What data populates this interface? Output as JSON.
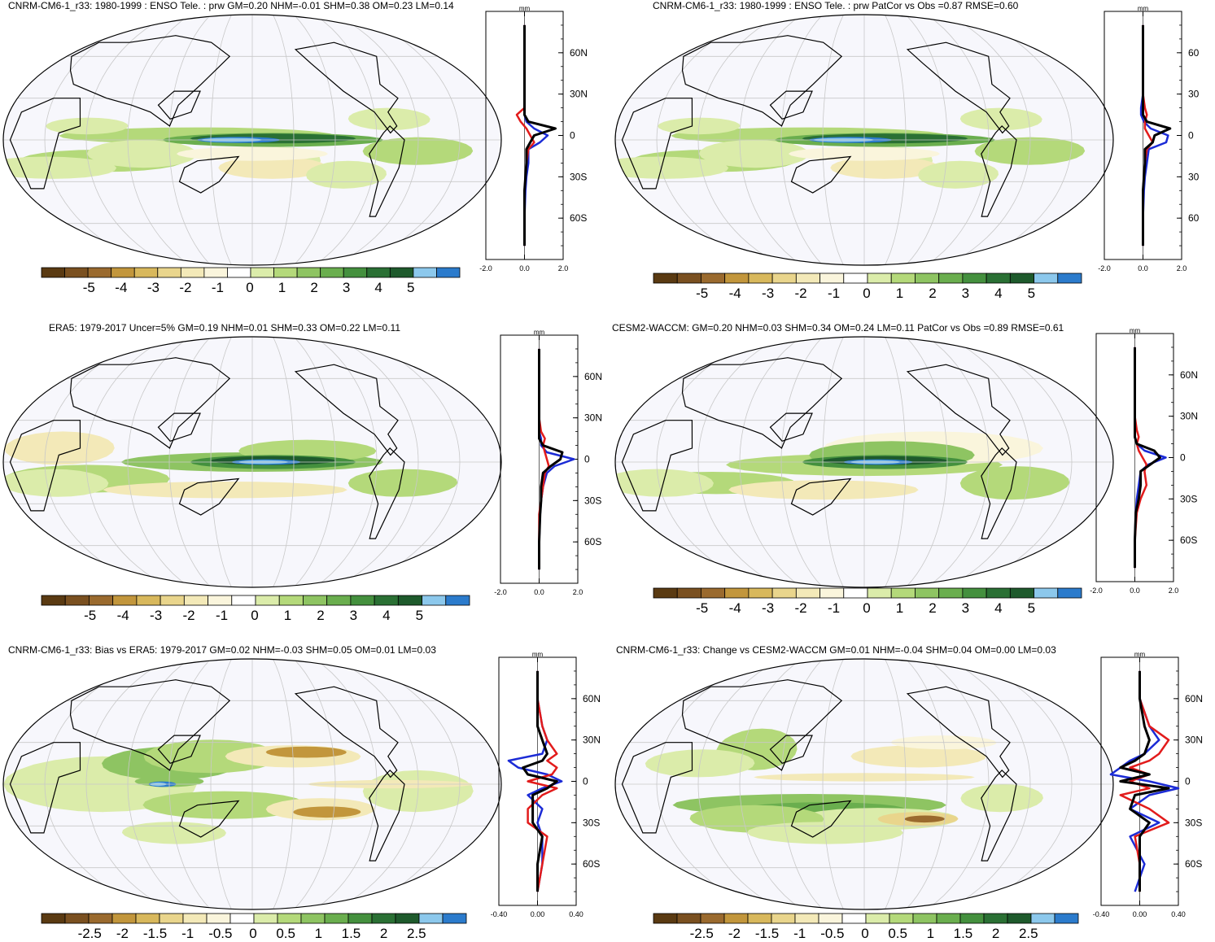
{
  "colors": {
    "scale": [
      "#5a3a12",
      "#7a5020",
      "#9a6a2e",
      "#c2963c",
      "#d8b85c",
      "#e9d58c",
      "#f3e9b8",
      "#faf5dc",
      "#ffffff",
      "#dbecaa",
      "#b4d97a",
      "#8ec462",
      "#6aae4e",
      "#44903e",
      "#2a7034",
      "#1e5a2c",
      "#8cc8ec",
      "#2b7bcc"
    ],
    "map_bg": "#f7f7fc",
    "grid": "#c8c8c8",
    "coast": "#000000",
    "line_blue": "#1b2bd6",
    "line_red": "#e21b1b",
    "line_black": "#000000"
  },
  "panels": [
    {
      "id": "p1",
      "title": "CNRM-CM6-1_r33: 1980-1999 : ENSO Tele. : prw GM=0.20 NHM=-0.01 SHM=0.38 OM=0.23 LM=0.14",
      "unit": "mm",
      "cbar_labels": [
        "-5",
        "-4",
        "-3",
        "-2",
        "-1",
        "0",
        "1",
        "2",
        "3",
        "4",
        "5"
      ],
      "x_ticks": [
        "-2.0",
        "0.0",
        "2.0"
      ],
      "lat_ticks": [
        "60N",
        "30N",
        "0",
        "30S",
        "60S"
      ],
      "pattern": "model"
    },
    {
      "id": "p2",
      "title": "CNRM-CM6-1_r33: 1980-1999 : ENSO Tele. : prw PatCor vs Obs =0.87 RMSE=0.60",
      "unit": "mm",
      "cbar_labels": [
        "-5",
        "-4",
        "-3",
        "-2",
        "-1",
        "0",
        "1",
        "2",
        "3",
        "4",
        "5"
      ],
      "x_ticks": [
        "-2.0",
        "0.0",
        "2.0"
      ],
      "lat_ticks": [
        "60",
        "30",
        "0",
        "30",
        "60"
      ],
      "pattern": "model"
    },
    {
      "id": "p3",
      "title": "ERA5: 1979-2017 Uncer=5% GM=0.19 NHM=0.01 SHM=0.33 OM=0.22 LM=0.11",
      "unit": "mm",
      "cbar_labels": [
        "-5",
        "-4",
        "-3",
        "-2",
        "-1",
        "0",
        "1",
        "2",
        "3",
        "4",
        "5"
      ],
      "x_ticks": [
        "-2.0",
        "0.0",
        "2.0"
      ],
      "lat_ticks": [
        "60N",
        "30N",
        "0",
        "30S",
        "60S"
      ],
      "pattern": "obs"
    },
    {
      "id": "p4",
      "title": "CESM2-WACCM: GM=0.20 NHM=0.03 SHM=0.34 OM=0.24 LM=0.11 PatCor vs Obs =0.89 RMSE=0.61",
      "unit": "mm",
      "cbar_labels": [
        "-5",
        "-4",
        "-3",
        "-2",
        "-1",
        "0",
        "1",
        "2",
        "3",
        "4",
        "5"
      ],
      "x_ticks": [
        "-2.0",
        "0.0",
        "2.0"
      ],
      "lat_ticks": [
        "60N",
        "30N",
        "0",
        "30S",
        "60S"
      ],
      "pattern": "cesm"
    },
    {
      "id": "p5",
      "title": "CNRM-CM6-1_r33: Bias vs ERA5: 1979-2017 GM=0.02 NHM=-0.03 SHM=0.05 OM=0.01 LM=0.03",
      "unit": "mm",
      "cbar_labels": [
        "-2.5",
        "-2",
        "-1.5",
        "-1",
        "-0.5",
        "0",
        "0.5",
        "1",
        "1.5",
        "2",
        "2.5"
      ],
      "x_ticks": [
        "-0.40",
        "0.00",
        "0.40"
      ],
      "lat_ticks": [
        "60N",
        "30N",
        "0",
        "30S",
        "60S"
      ],
      "pattern": "bias"
    },
    {
      "id": "p6",
      "title": "CNRM-CM6-1_r33: Change vs CESM2-WACCM GM=0.01 NHM=-0.04 SHM=0.04 OM=0.00 LM=0.03",
      "unit": "mm",
      "cbar_labels": [
        "-2.5",
        "-2",
        "-1.5",
        "-1",
        "-0.5",
        "0",
        "0.5",
        "1",
        "1.5",
        "2",
        "2.5"
      ],
      "x_ticks": [
        "-0.40",
        "0.00",
        "0.40"
      ],
      "lat_ticks": [
        "60N",
        "30N",
        "0",
        "30S",
        "60S"
      ],
      "pattern": "change"
    }
  ],
  "chart_data": [
    {
      "type": "heatmap",
      "title": "CNRM-CM6-1_r33: 1980-1999 : ENSO Tele. : prw GM=0.20 NHM=-0.01 SHM=0.38 OM=0.23 LM=0.14",
      "xlim": [
        -2.0,
        2.0
      ],
      "ylim": [
        -90,
        90
      ],
      "series": [
        {
          "lat": [
            -80,
            -60,
            -40,
            -30,
            -20,
            -10,
            -5,
            0,
            5,
            10,
            15,
            20,
            30,
            40,
            60,
            80
          ],
          "values": [
            0,
            0,
            0.05,
            0.1,
            0.2,
            0.2,
            0.8,
            1.2,
            0.5,
            0.1,
            0,
            0,
            0,
            0,
            0,
            0
          ]
        },
        {
          "lat": [
            -80,
            -60,
            -40,
            -30,
            -20,
            -10,
            -5,
            0,
            5,
            10,
            15,
            20,
            30,
            40,
            60,
            80
          ],
          "values": [
            0,
            0,
            0,
            0.05,
            0.1,
            0.2,
            0.5,
            0.3,
            0.1,
            -0.2,
            -0.4,
            0,
            0,
            0,
            0,
            0
          ]
        },
        {
          "lat": [
            -80,
            -60,
            -40,
            -30,
            -20,
            -10,
            -5,
            0,
            5,
            10,
            15,
            20,
            30,
            40,
            60,
            80
          ],
          "values": [
            0,
            0,
            0,
            0.05,
            0.1,
            0.1,
            0.3,
            0.5,
            1.6,
            0.2,
            0,
            0,
            0,
            0,
            0,
            0
          ]
        }
      ]
    },
    {
      "type": "heatmap",
      "title": "CNRM-CM6-1_r33: 1980-1999 : ENSO Tele. : prw PatCor vs Obs =0.87 RMSE=0.60",
      "xlim": [
        -2.0,
        2.0
      ],
      "ylim": [
        -90,
        90
      ],
      "series": [
        {
          "lat": [
            -80,
            -60,
            -40,
            -30,
            -20,
            -10,
            -5,
            0,
            5,
            10,
            15,
            20,
            30,
            40,
            60,
            80
          ],
          "values": [
            0,
            0,
            0.05,
            0.1,
            0.2,
            0.3,
            1.2,
            1.3,
            0.4,
            0.05,
            -0.1,
            -0.1,
            0,
            0,
            0,
            0
          ]
        },
        {
          "lat": [
            -80,
            -60,
            -40,
            -30,
            -20,
            -10,
            -5,
            0,
            5,
            10,
            15,
            20,
            30,
            40,
            60,
            80
          ],
          "values": [
            0,
            0,
            0,
            0.05,
            0.1,
            0.2,
            0.5,
            0.3,
            0.1,
            0.1,
            0.2,
            0.1,
            0,
            0,
            0,
            0
          ]
        },
        {
          "lat": [
            -80,
            -60,
            -40,
            -30,
            -20,
            -10,
            -5,
            0,
            5,
            10,
            15,
            20,
            30,
            40,
            60,
            80
          ],
          "values": [
            0,
            0,
            0,
            0.05,
            0.1,
            0.1,
            0.5,
            0.6,
            1.4,
            0.2,
            0,
            0,
            0,
            0,
            0,
            0
          ]
        }
      ]
    },
    {
      "type": "heatmap",
      "title": "ERA5: 1979-2017 Uncer=5% GM=0.19 NHM=0.01 SHM=0.33 OM=0.22 LM=0.11",
      "xlim": [
        -2.0,
        2.0
      ],
      "ylim": [
        -90,
        90
      ],
      "series": [
        {
          "lat": [
            -80,
            -60,
            -40,
            -30,
            -20,
            -10,
            -5,
            0,
            5,
            10,
            15,
            20,
            30,
            40,
            60,
            80
          ],
          "values": [
            0,
            0,
            0.05,
            0.1,
            0.2,
            0.4,
            0.8,
            1.8,
            0.4,
            0.1,
            0.1,
            0,
            0,
            0,
            0,
            0
          ]
        },
        {
          "lat": [
            -80,
            -60,
            -40,
            -30,
            -20,
            -10,
            -5,
            0,
            5,
            10,
            15,
            20,
            30,
            40,
            60,
            80
          ],
          "values": [
            0,
            0,
            0,
            0.1,
            0.2,
            0.3,
            0.5,
            0.4,
            0.3,
            0.2,
            0.3,
            0.1,
            0,
            0,
            0,
            0
          ]
        },
        {
          "lat": [
            -80,
            -60,
            -40,
            -30,
            -20,
            -10,
            -5,
            0,
            5,
            10,
            15,
            20,
            30,
            40,
            60,
            80
          ],
          "values": [
            0,
            0,
            0.05,
            0.1,
            0.1,
            0.2,
            0.6,
            1.1,
            1.2,
            0.2,
            0,
            0,
            0,
            0,
            0,
            0
          ]
        }
      ]
    },
    {
      "type": "heatmap",
      "title": "CESM2-WACCM: GM=0.20 NHM=0.03 SHM=0.34 OM=0.24 LM=0.11 PatCor vs Obs =0.89 RMSE=0.61",
      "xlim": [
        -2.0,
        2.0
      ],
      "ylim": [
        -90,
        90
      ],
      "series": [
        {
          "lat": [
            -80,
            -60,
            -40,
            -30,
            -20,
            -10,
            -5,
            0,
            5,
            10,
            15,
            20,
            30,
            40,
            60,
            80
          ],
          "values": [
            0,
            0,
            0.05,
            0.1,
            0.2,
            0.3,
            0.7,
            1.6,
            0.5,
            0.1,
            0,
            0,
            0,
            0,
            0,
            0
          ]
        },
        {
          "lat": [
            -80,
            -60,
            -40,
            -30,
            -20,
            -10,
            -5,
            0,
            5,
            10,
            15,
            20,
            30,
            40,
            60,
            80
          ],
          "values": [
            0,
            0,
            0.1,
            0.3,
            0.6,
            0.5,
            0.6,
            0.4,
            0.2,
            0.1,
            0.2,
            0.1,
            0,
            0,
            0,
            0
          ]
        },
        {
          "lat": [
            -80,
            -60,
            -40,
            -30,
            -20,
            -10,
            -5,
            0,
            5,
            10,
            15,
            20,
            30,
            40,
            60,
            80
          ],
          "values": [
            0,
            0,
            0.05,
            0.2,
            0.3,
            0.3,
            0.8,
            1.3,
            1.0,
            0.1,
            0,
            0,
            0,
            0,
            0,
            0
          ]
        }
      ]
    },
    {
      "type": "heatmap",
      "title": "CNRM-CM6-1_r33: Bias vs ERA5: 1979-2017 GM=0.02 NHM=-0.03 SHM=0.05 OM=0.01 LM=0.03",
      "xlim": [
        -0.4,
        0.4
      ],
      "ylim": [
        -90,
        90
      ],
      "series": [
        {
          "lat": [
            -80,
            -60,
            -40,
            -30,
            -20,
            -10,
            -5,
            0,
            5,
            10,
            15,
            20,
            30,
            40,
            60,
            80
          ],
          "values": [
            0,
            0.05,
            0.05,
            0,
            0.05,
            -0.1,
            0.05,
            0.25,
            0.1,
            -0.2,
            -0.3,
            0.05,
            0.1,
            0.05,
            0,
            0
          ]
        },
        {
          "lat": [
            -80,
            -60,
            -40,
            -30,
            -20,
            -10,
            -5,
            0,
            5,
            10,
            15,
            20,
            30,
            40,
            60,
            80
          ],
          "values": [
            0,
            0.05,
            0.1,
            -0.1,
            -0.1,
            0.05,
            0.2,
            -0.1,
            0.15,
            0.2,
            0.1,
            0.2,
            0.1,
            0.05,
            0,
            0
          ]
        },
        {
          "lat": [
            -80,
            -60,
            -40,
            -30,
            -20,
            -10,
            -5,
            0,
            5,
            10,
            15,
            20,
            30,
            40,
            60,
            80
          ],
          "values": [
            0,
            0,
            0.05,
            -0.05,
            -0.05,
            -0.05,
            0.1,
            0.2,
            -0.1,
            -0.15,
            0.05,
            0.1,
            0.05,
            0,
            0,
            0
          ]
        }
      ]
    },
    {
      "type": "heatmap",
      "title": "CNRM-CM6-1_r33: Change vs CESM2-WACCM GM=0.01 NHM=-0.04 SHM=0.04 OM=0.00 LM=0.03",
      "xlim": [
        -0.4,
        0.4
      ],
      "ylim": [
        -90,
        90
      ],
      "series": [
        {
          "lat": [
            -80,
            -60,
            -40,
            -30,
            -20,
            -10,
            -5,
            0,
            5,
            10,
            15,
            20,
            30,
            40,
            60,
            80
          ],
          "values": [
            -0.05,
            0.05,
            -0.1,
            0.2,
            -0.1,
            0.1,
            0.4,
            0.1,
            -0.3,
            -0.2,
            -0.1,
            0.05,
            0.2,
            0.1,
            0,
            0
          ]
        },
        {
          "lat": [
            -80,
            -60,
            -40,
            -30,
            -20,
            -10,
            -5,
            0,
            5,
            10,
            15,
            20,
            30,
            40,
            60,
            80
          ],
          "values": [
            0,
            0,
            -0.05,
            0.3,
            0.1,
            -0.2,
            0.1,
            -0.1,
            0.1,
            -0.1,
            0.1,
            0.2,
            0.3,
            0.1,
            0,
            0
          ]
        },
        {
          "lat": [
            -80,
            -60,
            -40,
            -30,
            -20,
            -10,
            -5,
            0,
            5,
            10,
            15,
            20,
            30,
            40,
            60,
            80
          ],
          "values": [
            0,
            0,
            0,
            0.1,
            -0.1,
            -0.05,
            0.3,
            -0.2,
            0.1,
            -0.2,
            -0.05,
            0.05,
            0.1,
            0.05,
            0,
            0
          ]
        }
      ]
    }
  ]
}
